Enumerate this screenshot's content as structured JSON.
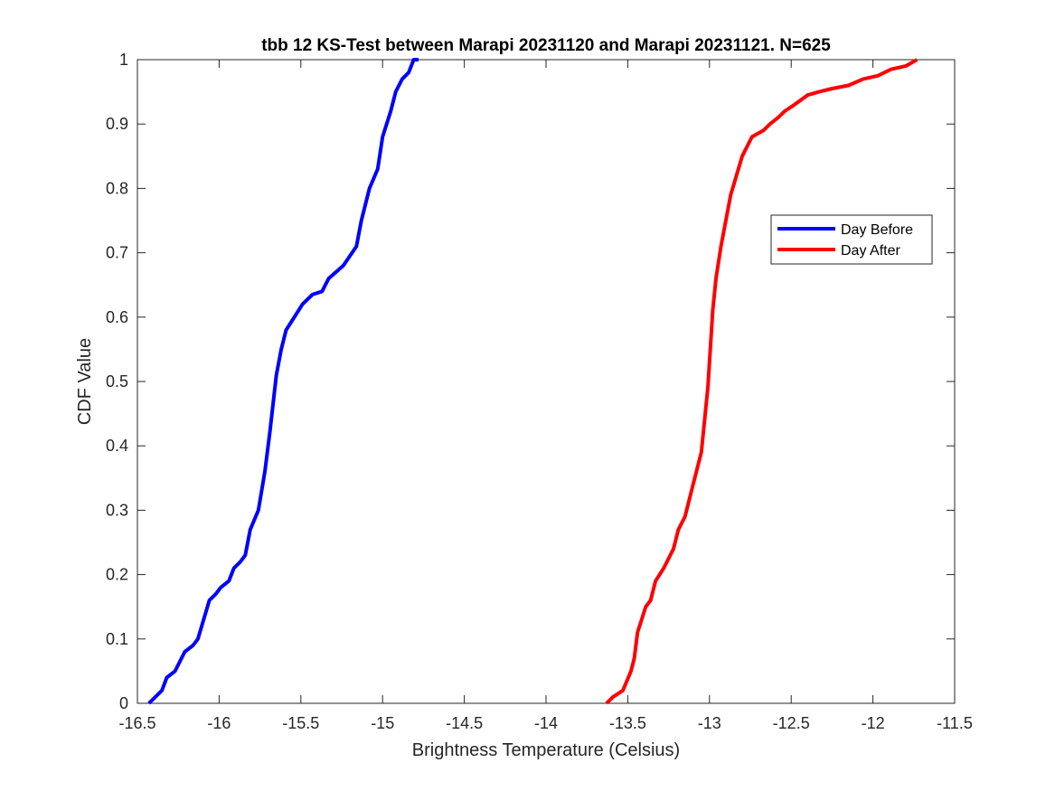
{
  "chart_data": {
    "type": "line",
    "title": "tbb 12 KS-Test between Marapi 20231120 and Marapi 20231121. N=625",
    "xlabel": "Brightness Temperature (Celsius)",
    "ylabel": "CDF Value",
    "xlim": [
      -16.5,
      -11.5
    ],
    "ylim": [
      0,
      1
    ],
    "xticks": [
      -16.5,
      -16,
      -15.5,
      -15,
      -14.5,
      -14,
      -13.5,
      -13,
      -12.5,
      -12,
      -11.5
    ],
    "xtick_labels": [
      "-16.5",
      "-16",
      "-15.5",
      "-15",
      "-14.5",
      "-14",
      "-13.5",
      "-13",
      "-12.5",
      "-12",
      "-11.5"
    ],
    "yticks": [
      0,
      0.1,
      0.2,
      0.3,
      0.4,
      0.5,
      0.6,
      0.7,
      0.8,
      0.9,
      1
    ],
    "ytick_labels": [
      "0",
      "0.1",
      "0.2",
      "0.3",
      "0.4",
      "0.5",
      "0.6",
      "0.7",
      "0.8",
      "0.9",
      "1"
    ],
    "grid": false,
    "legend_position": "right, upper-middle",
    "series": [
      {
        "name": "Day Before",
        "color": "#0000ff",
        "points": [
          [
            -16.43,
            0.0
          ],
          [
            -16.35,
            0.02
          ],
          [
            -16.32,
            0.04
          ],
          [
            -16.27,
            0.05
          ],
          [
            -16.21,
            0.08
          ],
          [
            -16.16,
            0.09
          ],
          [
            -16.13,
            0.1
          ],
          [
            -16.06,
            0.16
          ],
          [
            -16.02,
            0.17
          ],
          [
            -15.99,
            0.18
          ],
          [
            -15.94,
            0.19
          ],
          [
            -15.91,
            0.21
          ],
          [
            -15.87,
            0.22
          ],
          [
            -15.84,
            0.23
          ],
          [
            -15.81,
            0.27
          ],
          [
            -15.76,
            0.3
          ],
          [
            -15.72,
            0.36
          ],
          [
            -15.69,
            0.42
          ],
          [
            -15.65,
            0.51
          ],
          [
            -15.62,
            0.55
          ],
          [
            -15.59,
            0.58
          ],
          [
            -15.54,
            0.6
          ],
          [
            -15.49,
            0.62
          ],
          [
            -15.43,
            0.635
          ],
          [
            -15.37,
            0.64
          ],
          [
            -15.33,
            0.66
          ],
          [
            -15.24,
            0.68
          ],
          [
            -15.16,
            0.71
          ],
          [
            -15.13,
            0.75
          ],
          [
            -15.08,
            0.8
          ],
          [
            -15.03,
            0.83
          ],
          [
            -15.0,
            0.88
          ],
          [
            -14.95,
            0.92
          ],
          [
            -14.92,
            0.95
          ],
          [
            -14.88,
            0.97
          ],
          [
            -14.84,
            0.98
          ],
          [
            -14.81,
            1.0
          ],
          [
            -14.78,
            1.0
          ]
        ]
      },
      {
        "name": "Day After",
        "color": "#ff0000",
        "points": [
          [
            -13.63,
            0.0
          ],
          [
            -13.59,
            0.01
          ],
          [
            -13.53,
            0.02
          ],
          [
            -13.48,
            0.05
          ],
          [
            -13.46,
            0.07
          ],
          [
            -13.44,
            0.11
          ],
          [
            -13.39,
            0.15
          ],
          [
            -13.36,
            0.16
          ],
          [
            -13.33,
            0.19
          ],
          [
            -13.28,
            0.21
          ],
          [
            -13.22,
            0.24
          ],
          [
            -13.19,
            0.27
          ],
          [
            -13.15,
            0.29
          ],
          [
            -13.1,
            0.34
          ],
          [
            -13.05,
            0.39
          ],
          [
            -13.01,
            0.49
          ],
          [
            -12.98,
            0.61
          ],
          [
            -12.96,
            0.66
          ],
          [
            -12.93,
            0.71
          ],
          [
            -12.87,
            0.79
          ],
          [
            -12.8,
            0.85
          ],
          [
            -12.74,
            0.88
          ],
          [
            -12.67,
            0.89
          ],
          [
            -12.63,
            0.9
          ],
          [
            -12.58,
            0.91
          ],
          [
            -12.54,
            0.92
          ],
          [
            -12.48,
            0.93
          ],
          [
            -12.4,
            0.945
          ],
          [
            -12.33,
            0.95
          ],
          [
            -12.25,
            0.955
          ],
          [
            -12.15,
            0.96
          ],
          [
            -12.06,
            0.97
          ],
          [
            -11.97,
            0.975
          ],
          [
            -11.89,
            0.985
          ],
          [
            -11.8,
            0.99
          ],
          [
            -11.73,
            1.0
          ]
        ]
      }
    ]
  }
}
